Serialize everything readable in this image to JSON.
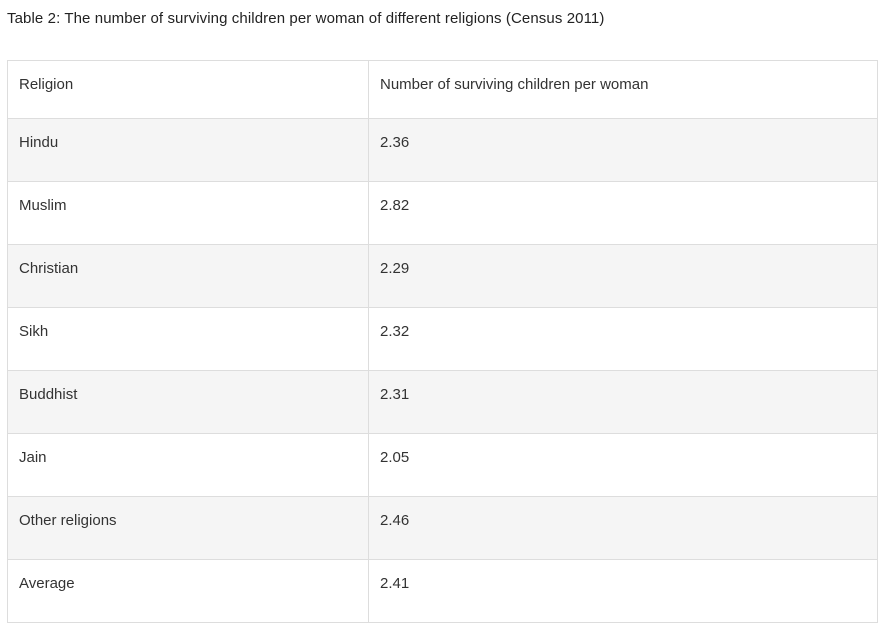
{
  "caption": "Table 2: The number of surviving children per woman of different religions (Census 2011)",
  "table": {
    "headers": [
      "Religion",
      "Number of surviving children per woman"
    ],
    "rows": [
      {
        "religion": "Hindu",
        "value": "2.36"
      },
      {
        "religion": "Muslim",
        "value": "2.82"
      },
      {
        "religion": "Christian",
        "value": "2.29"
      },
      {
        "religion": "Sikh",
        "value": "2.32"
      },
      {
        "religion": "Buddhist",
        "value": "2.31"
      },
      {
        "religion": "Jain",
        "value": "2.05"
      },
      {
        "religion": "Other religions",
        "value": "2.46"
      },
      {
        "religion": "Average",
        "value": "2.41"
      }
    ]
  },
  "chart_data": {
    "type": "table",
    "title": "Table 2: The number of surviving children per woman of different religions (Census 2011)",
    "columns": [
      "Religion",
      "Number of surviving children per woman"
    ],
    "categories": [
      "Hindu",
      "Muslim",
      "Christian",
      "Sikh",
      "Buddhist",
      "Jain",
      "Other religions",
      "Average"
    ],
    "values": [
      2.36,
      2.82,
      2.29,
      2.32,
      2.31,
      2.05,
      2.46,
      2.41
    ]
  },
  "colors": {
    "page_background": "#ffffff",
    "stripe_background": "#f5f5f5",
    "border": "#dddddd",
    "caption_text": "#222222",
    "cell_text": "#333333"
  }
}
